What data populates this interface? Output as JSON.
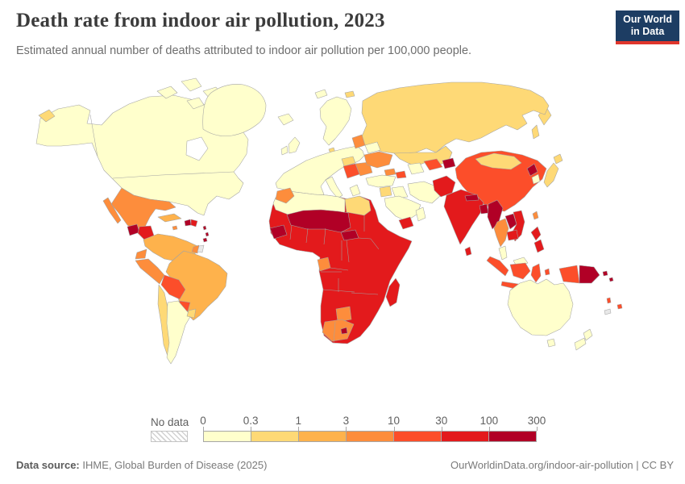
{
  "header": {
    "title": "Death rate from indoor air pollution, 2023",
    "subtitle": "Estimated annual number of deaths attributed to indoor air pollution per 100,000 people.",
    "logo": {
      "line1": "Our World",
      "line2": "in Data",
      "bg_color": "#1d3d63",
      "accent_color": "#e0362c"
    }
  },
  "legend": {
    "no_data_label": "No data",
    "tick_labels": [
      "0",
      "0.3",
      "1",
      "3",
      "10",
      "30",
      "100",
      "300"
    ],
    "bins": [
      {
        "range": "0–0.3",
        "color": "#FFFFCC"
      },
      {
        "range": "0.3–1",
        "color": "#FED976"
      },
      {
        "range": "1–3",
        "color": "#FEB24C"
      },
      {
        "range": "3–10",
        "color": "#FD8D3C"
      },
      {
        "range": "10–30",
        "color": "#FC4E2A"
      },
      {
        "range": "30–100",
        "color": "#E31A1C"
      },
      {
        "range": "100–300",
        "color": "#B10026"
      }
    ]
  },
  "footer": {
    "source_label": "Data source:",
    "source_text": " IHME, Global Burden of Disease (2025)",
    "link_text": "OurWorldinData.org/indoor-air-pollution | CC BY"
  },
  "chart_data": {
    "type": "heatmap",
    "subtype": "choropleth-world-map",
    "title": "Death rate from indoor air pollution, 2023",
    "unit": "deaths per 100,000 people",
    "scale_type": "log",
    "scale_ticks": [
      0,
      0.3,
      1,
      3,
      10,
      30,
      100,
      300
    ],
    "palette": [
      "#FFFFCC",
      "#FED976",
      "#FEB24C",
      "#FD8D3C",
      "#FC4E2A",
      "#E31A1C",
      "#B10026"
    ],
    "no_data_regions": [
      "French Guiana",
      "New Caledonia"
    ],
    "region_bands": {
      "0–0.3": [
        "United States",
        "Canada",
        "Greenland",
        "Iceland",
        "United Kingdom",
        "Ireland",
        "Norway",
        "Sweden",
        "Finland",
        "France",
        "Germany",
        "Spain",
        "Italy",
        "Greece",
        "Poland",
        "Belarus",
        "Turkey",
        "Iraq",
        "Iran",
        "Saudi Arabia",
        "Oman",
        "Turkmenistan",
        "South Korea",
        "Malaysia",
        "Australia",
        "New Zealand",
        "Argentina",
        "Algeria",
        "Libya"
      ],
      "0.3–1": [
        "Russia",
        "Kazakhstan",
        "Mongolia",
        "Egypt",
        "Japan",
        "Syria",
        "Jordan",
        "Chile",
        "Uruguay",
        "Denmark",
        "Hungary"
      ],
      "1–3": [
        "Cuba",
        "Colombia",
        "Venezuela",
        "Brazil",
        "Guyana"
      ],
      "3–10": [
        "Mexico",
        "Morocco",
        "Ukraine",
        "Latvia",
        "Lithuania",
        "Romania",
        "Bulgaria",
        "Georgia",
        "Ecuador",
        "Peru",
        "Suriname",
        "Costa Rica",
        "Panama",
        "Thailand",
        "Taiwan",
        "Gabon",
        "Botswana",
        "South Africa",
        "Jamaica"
      ],
      "10–30": [
        "Serbia",
        "Bosnia and Herzegovina",
        "Azerbaijan",
        "Uzbekistan",
        "China",
        "Bolivia",
        "Paraguay",
        "Indonesia",
        "Vanuatu",
        "Fiji"
      ],
      "30–100": [
        "India",
        "Pakistan",
        "Afghanistan",
        "Yemen",
        "Vietnam",
        "Cambodia",
        "Sri Lanka",
        "Philippines",
        "Timor-Leste",
        "Honduras",
        "Nicaragua",
        "Dominican Republic",
        "Sudan",
        "Ethiopia",
        "Somalia",
        "Nigeria",
        "DR Congo",
        "Angola",
        "Zambia",
        "Mozambique",
        "Kenya",
        "Tanzania",
        "Madagascar",
        "Mauritania"
      ],
      "100–300": [
        "Guatemala",
        "Haiti",
        "Mali",
        "Niger",
        "Chad",
        "Central African Republic",
        "Guinea",
        "Sierra Leone",
        "Lesotho",
        "Nepal",
        "Bangladesh",
        "Myanmar",
        "Laos",
        "North Korea",
        "Kyrgyzstan",
        "Tajikistan",
        "Papua New Guinea",
        "Solomon Islands"
      ]
    }
  },
  "map": {
    "stroke_color": "#a3a3a3",
    "regions": {
      "north-america": "#FFFFCC",
      "canadian-arctic": "#FFFFCC",
      "greenland": "#FFFFCC",
      "iceland": "#FFFFCC",
      "russia-east": "#FED976",
      "mexico": "#FD8D3C",
      "guatemala": "#B10026",
      "honduras-nicaragua": "#E31A1C",
      "costa-rica-panama": "#FD8D3C",
      "cuba": "#FEB24C",
      "jamaica": "#FD8D3C",
      "haiti": "#B10026",
      "dominican-republic": "#E31A1C",
      "lesser-antilles": "#B10026",
      "colombia-venezuela": "#FEB24C",
      "suriname": "#FD8D3C",
      "french-guiana": "#E8E8E8",
      "brazil": "#FEB24C",
      "ecuador": "#FD8D3C",
      "peru": "#FD8D3C",
      "bolivia": "#FC4E2A",
      "paraguay": "#FC4E2A",
      "chile": "#FED976",
      "argentina": "#FFFFCC",
      "uruguay": "#FED976",
      "svalbard": "#FFFFCC",
      "franz-josef": "#FED976",
      "russia": "#FED976",
      "scandinavia": "#FFFFCC",
      "denmark": "#FED976",
      "uk": "#FFFFCC",
      "ireland": "#FFFFCC",
      "west-europe": "#FFFFCC",
      "italy": "#FFFFCC",
      "greece": "#FFFFCC",
      "baltics": "#FD8D3C",
      "belarus": "#FFFFCC",
      "central-europe": "#FED976",
      "romania-bulgaria": "#FD8D3C",
      "balkans": "#FC4E2A",
      "ukraine": "#FD8D3C",
      "kazakhstan": "#FED976",
      "turkmenistan": "#FFFFCC",
      "uzbekistan": "#FC4E2A",
      "kyrgyzstan-tajikistan": "#B10026",
      "georgia": "#FD8D3C",
      "azerbaijan": "#FC4E2A",
      "turkey": "#FFFFCC",
      "syria-jordan": "#FED976",
      "iraq": "#FFFFCC",
      "iran": "#FFFFCC",
      "saudi-arabia": "#FFFFCC",
      "yemen": "#E31A1C",
      "oman": "#FFFFCC",
      "africa-base": "#E31A1C",
      "north-africa": "#FFFFCC",
      "morocco": "#FD8D3C",
      "egypt": "#FED976",
      "sahel": "#B10026",
      "guinea-region": "#B10026",
      "central-african-republic": "#B10026",
      "gabon": "#FD8D3C",
      "botswana": "#FD8D3C",
      "south-africa": "#FD8D3C",
      "lesotho": "#B10026",
      "madagascar": "#E31A1C",
      "china": "#FC4E2A",
      "mongolia": "#FED976",
      "north-korea": "#B10026",
      "south-korea": "#FFFFCC",
      "japan": "#FED976",
      "afghanistan-pakistan": "#E31A1C",
      "india": "#E31A1C",
      "nepal": "#B10026",
      "bangladesh": "#B10026",
      "sri-lanka": "#E31A1C",
      "myanmar": "#B10026",
      "thailand": "#FD8D3C",
      "laos": "#B10026",
      "vietnam": "#E31A1C",
      "cambodia": "#E31A1C",
      "malaysia": "#FFFFCC",
      "sumatra": "#FC4E2A",
      "borneo-malaysia": "#FFFFCC",
      "kalimantan": "#FC4E2A",
      "java": "#FC4E2A",
      "sulawesi": "#FC4E2A",
      "moluccas": "#FC4E2A",
      "philippines": "#E31A1C",
      "taiwan": "#FD8D3C",
      "indonesian-papua": "#FC4E2A",
      "papua-new-guinea": "#B10026",
      "timor": "#E31A1C",
      "solomon-islands": "#B10026",
      "vanuatu": "#FC4E2A",
      "fiji": "#FC4E2A",
      "new-caledonia": "#E8E8E8",
      "australia": "#FFFFCC",
      "tasmania": "#FFFFCC",
      "new-zealand": "#FFFFCC"
    }
  }
}
